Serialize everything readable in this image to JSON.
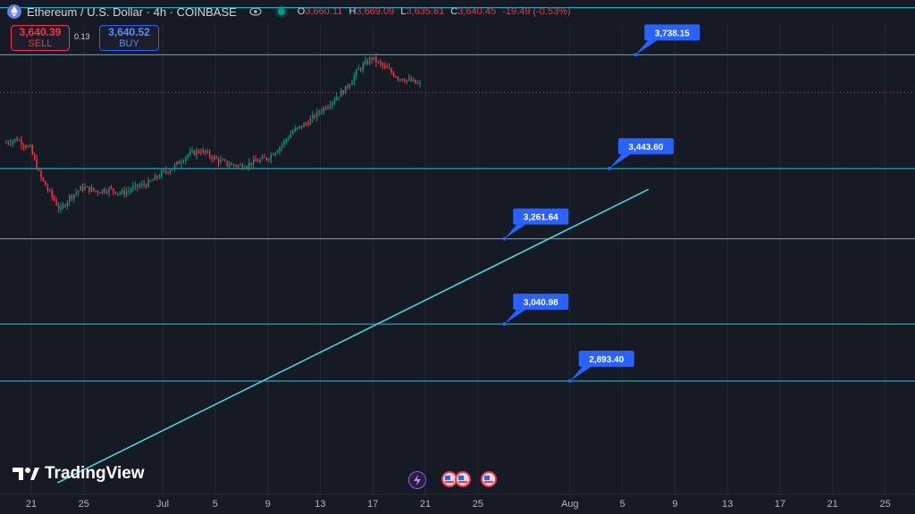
{
  "header": {
    "symbol_title": "Ethereum / U.S. Dollar · 4h · COINBASE",
    "open_label": "O",
    "open": "3,660.11",
    "high_label": "H",
    "high": "3,669.09",
    "low_label": "L",
    "low": "3,635.61",
    "close_label": "C",
    "close": "3,640.45",
    "change": "-19.49 (-0.53%)"
  },
  "trade": {
    "sell_price": "3,640.39",
    "sell_label": "SELL",
    "spread": "0.13",
    "buy_price": "3,640.52",
    "buy_label": "BUY"
  },
  "branding": {
    "watermark": "TradingView"
  },
  "colors": {
    "background": "#161a25",
    "up": "#089981",
    "down": "#f23645",
    "hline": "#26c6da",
    "callout": "#2962ff",
    "grid": "#242833",
    "text": "#b2b5be"
  },
  "icons": [
    "ethereum-icon",
    "eye-icon",
    "live-status-dot",
    "tradingview-logo-icon",
    "lightning-event-icon",
    "us-flag-event-icon"
  ],
  "chart_data": {
    "type": "candlestick",
    "timeframe": "4h",
    "x_tick_labels": [
      "21",
      "25",
      "Jul",
      "5",
      "9",
      "13",
      "17",
      "21",
      "25",
      "Aug",
      "5",
      "9",
      "13",
      "17",
      "21",
      "25"
    ],
    "x_ticks": [
      "Jun 21",
      "Jun 25",
      "Jul 1",
      "Jul 5",
      "Jul 9",
      "Jul 13",
      "Jul 17",
      "Jul 21",
      "Jul 25",
      "Aug 1",
      "Aug 5",
      "Aug 9",
      "Aug 13",
      "Aug 17",
      "Aug 21",
      "Aug 25"
    ],
    "x_start_date": "Jun 19",
    "ylim": [
      2600,
      3880
    ],
    "x_range_days": [
      0,
      69.5
    ],
    "current_price": 3640.45,
    "horizontal_levels": [
      {
        "label": "3,738.15",
        "value": 3738.15
      },
      {
        "label": "3,443.60",
        "value": 3443.6
      },
      {
        "label": "3,261.64",
        "value": 3261.64
      },
      {
        "label": "3,040.98",
        "value": 3040.98
      },
      {
        "label": "2,893.40",
        "value": 2893.4
      }
    ],
    "top_level": 3860,
    "trendline": {
      "from": {
        "date": "Jun 23",
        "value": 2630
      },
      "to": {
        "date": "Aug 7",
        "value": 3390
      }
    },
    "price_path": [
      {
        "date": "Jun 19.0",
        "value": 3510
      },
      {
        "date": "Jun 20.0",
        "value": 3520
      },
      {
        "date": "Jun 21.0",
        "value": 3495
      },
      {
        "date": "Jun 21.8",
        "value": 3420
      },
      {
        "date": "Jun 22.5",
        "value": 3380
      },
      {
        "date": "Jun 23.3",
        "value": 3335
      },
      {
        "date": "Jun 24.0",
        "value": 3370
      },
      {
        "date": "Jun 25.0",
        "value": 3395
      },
      {
        "date": "Jun 26.0",
        "value": 3385
      },
      {
        "date": "Jun 27.0",
        "value": 3390
      },
      {
        "date": "Jun 28.0",
        "value": 3380
      },
      {
        "date": "Jun 29.0",
        "value": 3395
      },
      {
        "date": "Jun 30.0",
        "value": 3405
      },
      {
        "date": "Jul 1.0",
        "value": 3430
      },
      {
        "date": "Jul 2.0",
        "value": 3450
      },
      {
        "date": "Jul 3.0",
        "value": 3480
      },
      {
        "date": "Jul 4.0",
        "value": 3490
      },
      {
        "date": "Jul 5.0",
        "value": 3470
      },
      {
        "date": "Jul 6.0",
        "value": 3455
      },
      {
        "date": "Jul 7.0",
        "value": 3450
      },
      {
        "date": "Jul 8.0",
        "value": 3460
      },
      {
        "date": "Jul 9.0",
        "value": 3470
      },
      {
        "date": "Jul 10.0",
        "value": 3500
      },
      {
        "date": "Jul 11.0",
        "value": 3540
      },
      {
        "date": "Jul 12.0",
        "value": 3560
      },
      {
        "date": "Jul 13.0",
        "value": 3590
      },
      {
        "date": "Jul 14.0",
        "value": 3620
      },
      {
        "date": "Jul 15.0",
        "value": 3650
      },
      {
        "date": "Jul 16.0",
        "value": 3700
      },
      {
        "date": "Jul 17.0",
        "value": 3730
      },
      {
        "date": "Jul 18.0",
        "value": 3705
      },
      {
        "date": "Jul 19.0",
        "value": 3680
      },
      {
        "date": "Jul 20.0",
        "value": 3670
      },
      {
        "date": "Jul 20.6",
        "value": 3660
      }
    ]
  }
}
